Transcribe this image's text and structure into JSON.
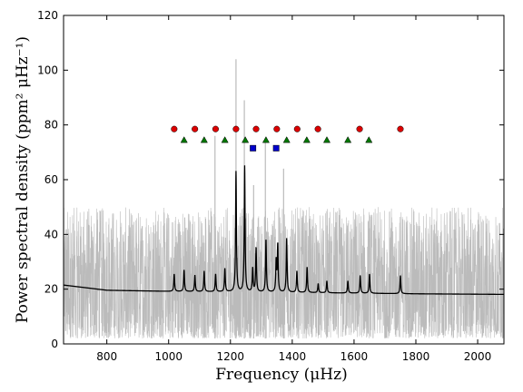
{
  "chart_data": {
    "type": "line",
    "xlabel": "Frequency (μHz)",
    "ylabel": "Power spectral density (ppm² μHz⁻¹)",
    "xlim": [
      660,
      2085
    ],
    "ylim": [
      0,
      120
    ],
    "xticks": [
      800,
      1000,
      1200,
      1400,
      1600,
      1800,
      2000
    ],
    "yticks": [
      0,
      20,
      40,
      60,
      80,
      100,
      120
    ],
    "grid": false,
    "colors": {
      "spectrum": "#bbbbbb",
      "fit": "#000000",
      "l0_marker": "#dd0000",
      "l1_marker": "#007700",
      "l2_marker": "#0000cc"
    },
    "spectrum": {
      "description": "noisy grey power spectrum (estimated envelope)",
      "baseline_range": [
        2,
        50
      ],
      "peaks": [
        {
          "x": 1150,
          "y": 76
        },
        {
          "x": 1218,
          "y": 104
        },
        {
          "x": 1245,
          "y": 89
        },
        {
          "x": 1313,
          "y": 74
        },
        {
          "x": 1372,
          "y": 64
        },
        {
          "x": 1275,
          "y": 58
        }
      ]
    },
    "fit_model": {
      "background": [
        [
          660,
          21.5
        ],
        [
          800,
          19.6
        ],
        [
          1000,
          19.2
        ],
        [
          1400,
          18.8
        ],
        [
          1800,
          18.3
        ],
        [
          2085,
          18.1
        ]
      ],
      "modes": [
        {
          "x": 1018,
          "y": 25.5
        },
        {
          "x": 1050,
          "y": 27
        },
        {
          "x": 1085,
          "y": 25
        },
        {
          "x": 1115,
          "y": 26.5
        },
        {
          "x": 1152,
          "y": 25.5
        },
        {
          "x": 1182,
          "y": 27.5
        },
        {
          "x": 1218,
          "y": 63
        },
        {
          "x": 1246,
          "y": 65
        },
        {
          "x": 1272,
          "y": 27.5
        },
        {
          "x": 1283,
          "y": 35
        },
        {
          "x": 1315,
          "y": 38
        },
        {
          "x": 1348,
          "y": 30
        },
        {
          "x": 1353,
          "y": 36
        },
        {
          "x": 1382,
          "y": 38.5
        },
        {
          "x": 1415,
          "y": 26.5
        },
        {
          "x": 1448,
          "y": 28
        },
        {
          "x": 1484,
          "y": 22
        },
        {
          "x": 1512,
          "y": 23
        },
        {
          "x": 1580,
          "y": 23
        },
        {
          "x": 1620,
          "y": 25
        },
        {
          "x": 1650,
          "y": 25.5
        },
        {
          "x": 1750,
          "y": 25
        }
      ]
    },
    "markers": {
      "l0": {
        "y": 78.5,
        "x": [
          1018,
          1085,
          1152,
          1218,
          1283,
          1350,
          1416,
          1483,
          1618,
          1750
        ]
      },
      "l1": {
        "y": 74.5,
        "x": [
          1050,
          1115,
          1182,
          1248,
          1315,
          1382,
          1447,
          1512,
          1580,
          1648
        ]
      },
      "l2": {
        "y": 71.5,
        "x": [
          1273,
          1348
        ]
      }
    }
  }
}
